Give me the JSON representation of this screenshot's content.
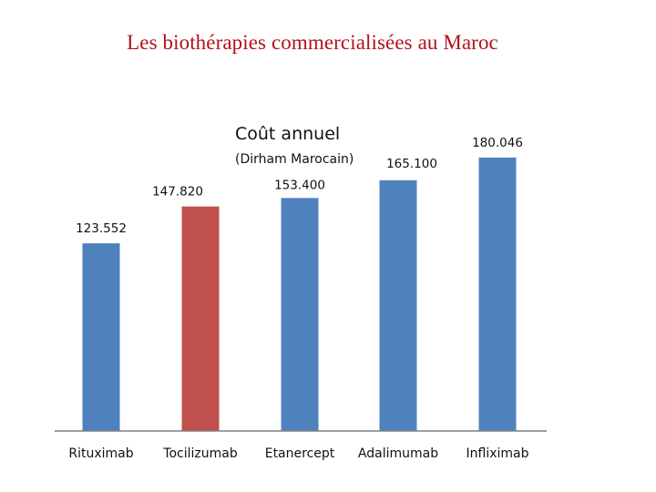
{
  "page": {
    "title": "Les biothérapies commercialisées au Maroc"
  },
  "chart_data": {
    "type": "bar",
    "title": "Coût annuel",
    "subtitle": "(Dirham Marocain)",
    "categories": [
      "Rituximab",
      "Tocilizumab",
      "Etanercept",
      "Adalimumab",
      "Infliximab"
    ],
    "values": [
      123552,
      147820,
      153400,
      165100,
      180046
    ],
    "value_labels": [
      "123.552",
      "147.820",
      "153.400",
      "165.100",
      "180.046"
    ],
    "colors": [
      "#4f81bd",
      "#c0504d",
      "#4f81bd",
      "#4f81bd",
      "#4f81bd"
    ],
    "ylim": [
      0,
      192000
    ],
    "grid": false,
    "legend": "none"
  }
}
